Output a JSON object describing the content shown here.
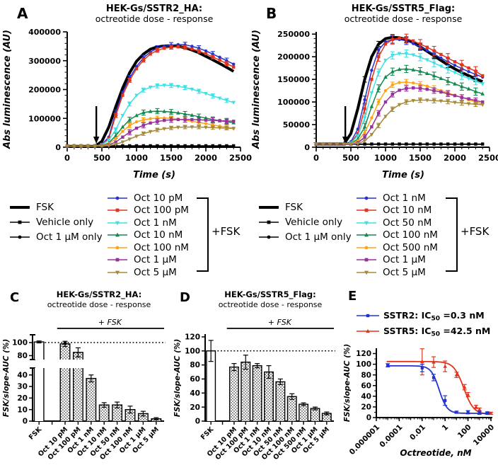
{
  "panel_labels": [
    "A",
    "B",
    "C",
    "D",
    "E"
  ],
  "legend_a": {
    "bracket_label": "+FSK",
    "controls": [
      {
        "label": "FSK",
        "color": "#000000",
        "swatch": "thick"
      },
      {
        "label": "Vehicle only",
        "color": "#000000",
        "marker": "s"
      },
      {
        "label": "Oct 1 µM only",
        "color": "#000000",
        "marker": "o"
      }
    ],
    "doses": [
      {
        "label": "Oct 10 pM",
        "color": "#2433cf",
        "marker": "o"
      },
      {
        "label": "Oct 100 pM",
        "color": "#e2331c",
        "marker": "s"
      },
      {
        "label": "Oct 1 nM",
        "color": "#3fe0e4",
        "marker": "v"
      },
      {
        "label": "Oct 10 nM",
        "color": "#12894d",
        "marker": "t"
      },
      {
        "label": "Oct 100 nM",
        "color": "#ffa318",
        "marker": "o"
      },
      {
        "label": "Oct 1 µM",
        "color": "#97319b",
        "marker": "s"
      },
      {
        "label": "Oct 5 µM",
        "color": "#a68a3c",
        "marker": "v"
      }
    ]
  },
  "legend_b": {
    "bracket_label": "+FSK",
    "controls": [
      {
        "label": "FSK",
        "color": "#000000",
        "swatch": "thick"
      },
      {
        "label": "Vehicle only",
        "color": "#000000",
        "marker": "s"
      },
      {
        "label": "Oct 1 µM only",
        "color": "#000000",
        "marker": "o"
      }
    ],
    "doses": [
      {
        "label": "Oct 1 nM",
        "color": "#2433cf",
        "marker": "o"
      },
      {
        "label": "Oct 10 nM",
        "color": "#e2331c",
        "marker": "s"
      },
      {
        "label": "Oct 50 nM",
        "color": "#3fe0e4",
        "marker": "v"
      },
      {
        "label": "Oct 100 nM",
        "color": "#12894d",
        "marker": "t"
      },
      {
        "label": "Oct 500 nM",
        "color": "#ffa318",
        "marker": "o"
      },
      {
        "label": "Oct 1 µM",
        "color": "#97319b",
        "marker": "s"
      },
      {
        "label": "Oct 5 µM",
        "color": "#a68a3c",
        "marker": "v"
      }
    ]
  },
  "chart_data": [
    {
      "panel_label": "A",
      "type": "line",
      "title_line1": "HEK-Gs/SSTR2_HA:",
      "title_line2": "octreotide dose - response",
      "xlabel": "Time (s)",
      "ylabel": "Abs luminescence (AU)",
      "xlim": [
        0,
        2500
      ],
      "ylim": [
        0,
        400
      ],
      "value_scale": 1000,
      "xticks": [
        0,
        500,
        1000,
        1500,
        2000,
        2500
      ],
      "xminor": 100,
      "yticks": [
        0,
        100,
        200,
        300,
        400
      ],
      "ytick_labels": [
        "0",
        "100000",
        "200000",
        "300000",
        "400000"
      ],
      "yminor": 20,
      "arrow_x": 420,
      "x": [
        0,
        100,
        200,
        300,
        400,
        500,
        600,
        700,
        800,
        900,
        1000,
        1100,
        1200,
        1300,
        1400,
        1500,
        1600,
        1700,
        1800,
        1900,
        2000,
        2100,
        2200,
        2300,
        2400
      ],
      "series": [
        {
          "name": "FSK",
          "color": "#000000",
          "lw": 4,
          "marker": "none",
          "err": 0,
          "values": [
            3,
            3,
            3,
            3,
            3,
            20,
            70,
            140,
            205,
            258,
            298,
            323,
            340,
            348,
            351,
            352,
            350,
            345,
            337,
            327,
            315,
            303,
            290,
            277,
            263
          ]
        },
        {
          "name": "Vehicle only",
          "color": "#000000",
          "lw": 1.4,
          "marker": "s",
          "err": 0,
          "baseline": 5
        },
        {
          "name": "Oct 1 µM only",
          "color": "#000000",
          "lw": 1.2,
          "marker": "o",
          "mr": 1.6,
          "err": 0,
          "baseline": 3
        },
        {
          "name": "Oct 10 pM",
          "color": "#2433cf",
          "lw": 1.5,
          "marker": "o",
          "err": 9,
          "values": [
            4,
            4,
            4,
            4,
            4,
            10,
            35,
            120,
            190,
            240,
            280,
            310,
            330,
            343,
            350,
            354,
            356,
            355,
            350,
            343,
            334,
            323,
            312,
            300,
            288
          ]
        },
        {
          "name": "Oct 100 pM",
          "color": "#e2331c",
          "lw": 1.5,
          "marker": "s",
          "err": 7,
          "values": [
            4,
            4,
            4,
            4,
            4,
            9,
            30,
            110,
            180,
            232,
            272,
            302,
            323,
            336,
            343,
            347,
            348,
            346,
            341,
            333,
            324,
            313,
            302,
            290,
            278
          ]
        },
        {
          "name": "Oct 1 nM",
          "color": "#3fe0e4",
          "lw": 1.5,
          "marker": "v",
          "err": 7,
          "values": [
            4,
            4,
            4,
            4,
            4,
            8,
            25,
            60,
            110,
            150,
            180,
            198,
            208,
            213,
            215,
            214,
            211,
            207,
            201,
            194,
            186,
            178,
            170,
            162,
            155
          ]
        },
        {
          "name": "Oct 10 nM",
          "color": "#12894d",
          "lw": 1.5,
          "marker": "t",
          "err": 9,
          "values": [
            4,
            4,
            4,
            4,
            4,
            6,
            15,
            40,
            70,
            95,
            110,
            120,
            124,
            125,
            124,
            122,
            119,
            115,
            111,
            106,
            101,
            96,
            92,
            88,
            85
          ]
        },
        {
          "name": "Oct 100 nM",
          "color": "#ffa318",
          "lw": 1.5,
          "marker": "o",
          "err": 7,
          "values": [
            4,
            4,
            4,
            4,
            4,
            5,
            12,
            30,
            55,
            75,
            88,
            95,
            99,
            101,
            101,
            100,
            97,
            94,
            90,
            86,
            82,
            77,
            73,
            69,
            66
          ]
        },
        {
          "name": "Oct 1 µM",
          "color": "#97319b",
          "lw": 1.5,
          "marker": "s",
          "err": 9,
          "values": [
            4,
            4,
            4,
            4,
            4,
            5,
            8,
            18,
            35,
            52,
            66,
            76,
            84,
            89,
            93,
            95,
            96,
            96,
            96,
            95,
            94,
            93,
            92,
            91,
            90
          ]
        },
        {
          "name": "Oct 5 µM",
          "color": "#a68a3c",
          "lw": 1.5,
          "marker": "v",
          "err": 6,
          "values": [
            4,
            4,
            4,
            4,
            4,
            4,
            6,
            10,
            18,
            28,
            38,
            47,
            54,
            60,
            64,
            67,
            69,
            70,
            70,
            70,
            69,
            68,
            67,
            66,
            65
          ]
        }
      ]
    },
    {
      "panel_label": "B",
      "type": "line",
      "title_line1": "HEK-Gs/SSTR5_Flag:",
      "title_line2": "octreotide dose - response",
      "xlabel": "Time (s)",
      "ylabel": "Abs luminescence (AU)",
      "xlim": [
        0,
        2500
      ],
      "ylim": [
        0,
        255
      ],
      "value_scale": 1000,
      "xticks": [
        0,
        500,
        1000,
        1500,
        2000,
        2500
      ],
      "xminor": 100,
      "yticks": [
        0,
        50,
        100,
        150,
        200,
        250
      ],
      "ytick_labels": [
        "0",
        "50000",
        "100000",
        "150000",
        "200000",
        "250000"
      ],
      "yminor": 10,
      "arrow_x": 420,
      "x": [
        0,
        100,
        200,
        300,
        400,
        500,
        600,
        700,
        800,
        900,
        1000,
        1100,
        1200,
        1300,
        1400,
        1500,
        1600,
        1700,
        1800,
        1900,
        2000,
        2100,
        2200,
        2300,
        2400
      ],
      "series": [
        {
          "name": "FSK",
          "color": "#000000",
          "lw": 4,
          "marker": "none",
          "err": 6,
          "values": [
            7,
            7,
            7,
            7,
            7,
            30,
            85,
            150,
            200,
            228,
            240,
            243,
            242,
            238,
            231,
            222,
            212,
            202,
            192,
            182,
            173,
            165,
            158,
            151,
            145
          ]
        },
        {
          "name": "Vehicle only",
          "color": "#000000",
          "lw": 1.4,
          "marker": "s",
          "err": 0,
          "baseline": 7
        },
        {
          "name": "Oct 1 µM only",
          "color": "#000000",
          "lw": 1.2,
          "marker": "o",
          "mr": 1.6,
          "err": 0,
          "baseline": 6
        },
        {
          "name": "Oct 1 nM",
          "color": "#2433cf",
          "lw": 1.5,
          "marker": "o",
          "err": 8,
          "values": [
            7,
            7,
            7,
            7,
            7,
            12,
            40,
            105,
            170,
            215,
            233,
            238,
            238,
            235,
            229,
            222,
            214,
            206,
            197,
            189,
            181,
            174,
            167,
            161,
            155
          ]
        },
        {
          "name": "Oct 10 nM",
          "color": "#e2331c",
          "lw": 1.5,
          "marker": "s",
          "err": 10,
          "values": [
            7,
            7,
            7,
            7,
            7,
            10,
            30,
            85,
            150,
            200,
            228,
            238,
            241,
            240,
            235,
            228,
            221,
            213,
            205,
            197,
            189,
            182,
            175,
            168,
            158
          ]
        },
        {
          "name": "Oct 50 nM",
          "color": "#3fe0e4",
          "lw": 1.5,
          "marker": "v",
          "err": 8,
          "values": [
            7,
            7,
            7,
            7,
            7,
            9,
            25,
            65,
            120,
            165,
            192,
            203,
            207,
            207,
            204,
            199,
            193,
            186,
            179,
            172,
            165,
            158,
            152,
            146,
            140
          ]
        },
        {
          "name": "Oct 100 nM",
          "color": "#12894d",
          "lw": 1.5,
          "marker": "t",
          "err": 8,
          "values": [
            7,
            7,
            7,
            7,
            7,
            8,
            18,
            45,
            90,
            130,
            155,
            167,
            172,
            173,
            171,
            168,
            163,
            158,
            152,
            146,
            140,
            134,
            129,
            123,
            118
          ]
        },
        {
          "name": "Oct 500 nM",
          "color": "#ffa318",
          "lw": 1.5,
          "marker": "o",
          "err": 6,
          "values": [
            7,
            7,
            7,
            7,
            7,
            8,
            14,
            32,
            65,
            100,
            125,
            138,
            143,
            144,
            142,
            139,
            135,
            130,
            125,
            120,
            115,
            110,
            105,
            100,
            96
          ]
        },
        {
          "name": "Oct 1 µM",
          "color": "#97319b",
          "lw": 1.5,
          "marker": "s",
          "err": 6,
          "values": [
            7,
            7,
            7,
            7,
            7,
            7,
            10,
            22,
            45,
            75,
            100,
            117,
            126,
            130,
            131,
            130,
            128,
            125,
            122,
            118,
            114,
            110,
            107,
            103,
            100
          ]
        },
        {
          "name": "Oct 5 µM",
          "color": "#a68a3c",
          "lw": 1.5,
          "marker": "v",
          "err": 5,
          "values": [
            7,
            7,
            7,
            7,
            7,
            7,
            8,
            14,
            28,
            48,
            68,
            84,
            94,
            100,
            103,
            104,
            104,
            103,
            102,
            101,
            99,
            98,
            96,
            95,
            94
          ]
        }
      ]
    },
    {
      "panel_label": "C",
      "type": "bar",
      "broken_axis": true,
      "title_line1": "HEK-Gs/SSTR2_HA:",
      "title_line2": "octreotide dose - response",
      "ylabel": "FSK/slope-AUC (%)",
      "group_label": "+ FSK",
      "dotted_line": 100,
      "upper_ticks": [
        80,
        100
      ],
      "lower_ticks": [
        0,
        10,
        20,
        30,
        40
      ],
      "categories": [
        "FSK",
        "Oct 10 pM",
        "Oct 100 pM",
        "Oct 1 nM",
        "Oct 10 nM",
        "Oct 50 nM",
        "Oct 100 nM",
        "Oct 1 µM",
        "Oct 5 µM"
      ],
      "values": [
        101,
        98,
        85,
        37,
        14,
        14,
        10,
        6.5,
        2
      ],
      "errors": [
        1.5,
        4,
        7,
        3,
        2,
        2.5,
        3,
        2,
        1
      ]
    },
    {
      "panel_label": "D",
      "type": "bar",
      "broken_axis": false,
      "title_line1": "HEK-Gs/SSTR5_Flag:",
      "title_line2": "octreotide dose - response",
      "ylabel": "FSK/slope-AUC (%)",
      "group_label": "+ FSK",
      "dotted_line": 100,
      "yticks": [
        0,
        20,
        40,
        60,
        80,
        100,
        120
      ],
      "categories": [
        "FSK",
        "Oct 10 pM",
        "Oct 100 pM",
        "Oct 1 nM",
        "Oct 10 nM",
        "Oct 50 nM",
        "Oct 100 nM",
        "Oct 500 nM",
        "Oct 1 µM",
        "Oct 5 µM"
      ],
      "values": [
        100,
        77,
        84,
        79,
        70,
        56,
        35,
        24,
        18,
        11
      ],
      "errors": [
        15,
        5,
        10,
        3,
        9,
        4,
        4,
        2,
        2,
        2
      ]
    },
    {
      "panel_label": "E",
      "type": "scatter",
      "x_scale": "log",
      "xlabel": "Octreotide, nM",
      "ylabel": "FSK/slope-AUC (%)",
      "xtick_logs": [
        -6,
        -4,
        -2,
        0,
        2,
        4
      ],
      "xtick_labels": [
        "0.000001",
        "0.0001",
        "0.01",
        "1",
        "100",
        "10000"
      ],
      "yticks": [
        0,
        20,
        40,
        60,
        80,
        100,
        120
      ],
      "series": [
        {
          "name": "SSTR5",
          "color": "#e2331c",
          "marker": "t",
          "ic50_nM": 42.5,
          "legend": {
            "pre": "SSTR5: IC",
            "sub": "50",
            "post": " =42.5 nM"
          },
          "fit": {
            "top": 105,
            "bottom": 6,
            "ic50": 42.5,
            "hill": 1.0
          },
          "points": [
            [
              0.01,
              105,
              25
            ],
            [
              0.1,
              104,
              10
            ],
            [
              1,
              96,
              10
            ],
            [
              10,
              80,
              5
            ],
            [
              50,
              57,
              5
            ],
            [
              100,
              43,
              4
            ],
            [
              500,
              20,
              3
            ],
            [
              1000,
              15,
              3
            ],
            [
              5000,
              9,
              2
            ],
            [
              10000,
              8,
              2
            ]
          ]
        },
        {
          "name": "SSTR2",
          "color": "#2433cf",
          "marker": "s",
          "ic50_nM": 0.3,
          "legend": {
            "pre": "SSTR2: IC",
            "sub": "50",
            "post": " =0.3 nM"
          },
          "fit": {
            "top": 97,
            "bottom": 8,
            "ic50": 0.3,
            "hill": 1.25
          },
          "points": [
            [
              1e-05,
              98,
              3
            ],
            [
              0.01,
              93,
              7
            ],
            [
              0.1,
              75,
              6
            ],
            [
              1,
              32,
              9
            ],
            [
              10,
              10,
              2
            ],
            [
              100,
              10,
              3
            ],
            [
              1000,
              9,
              3
            ],
            [
              5000,
              8,
              2
            ]
          ]
        }
      ]
    }
  ]
}
